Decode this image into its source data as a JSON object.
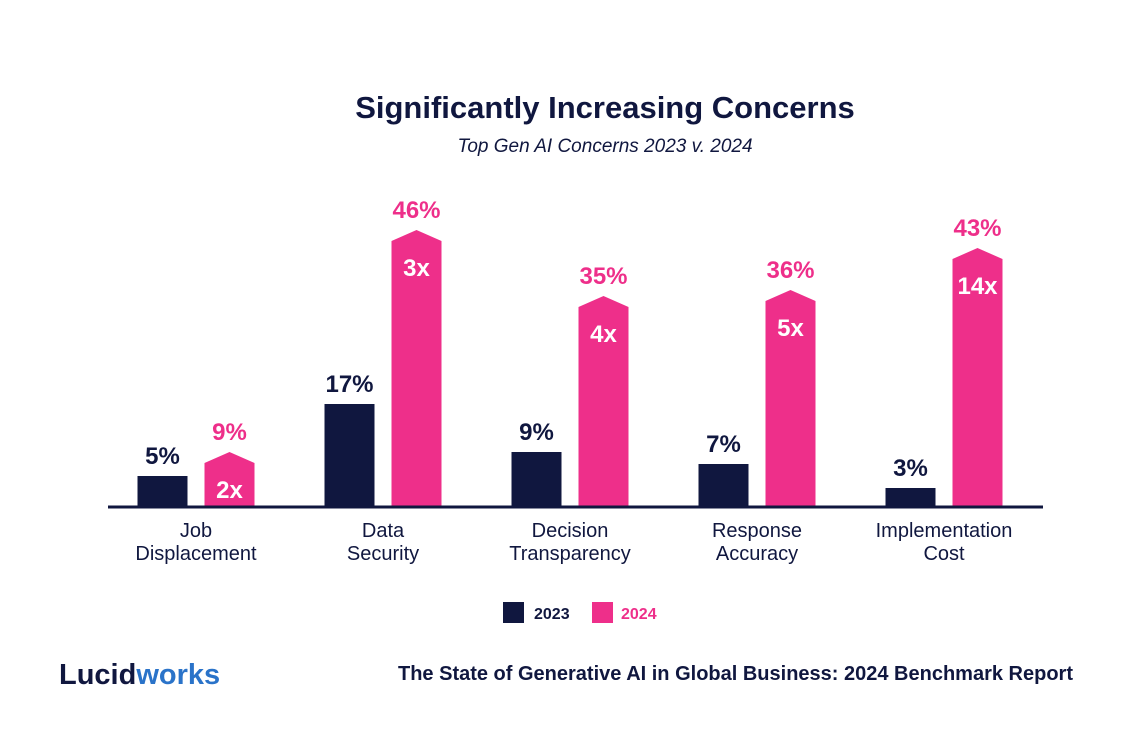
{
  "chart_data": {
    "type": "bar",
    "title": "Significantly Increasing Concerns",
    "subtitle": "Top Gen AI Concerns 2023 v. 2024",
    "categories": [
      [
        "Job",
        "Displacement"
      ],
      [
        "Data",
        "Security"
      ],
      [
        "Decision",
        "Transparency"
      ],
      [
        "Response",
        "Accuracy"
      ],
      [
        "Implementation",
        "Cost"
      ]
    ],
    "series": [
      {
        "name": "2023",
        "color": "#10173f",
        "values": [
          5,
          17,
          9,
          7,
          3
        ],
        "labels": [
          "5%",
          "17%",
          "9%",
          "7%",
          "3%"
        ]
      },
      {
        "name": "2024",
        "color": "#ee2f8a",
        "values": [
          9,
          46,
          35,
          36,
          43
        ],
        "labels": [
          "9%",
          "46%",
          "35%",
          "36%",
          "43%"
        ]
      }
    ],
    "multipliers": [
      "2x",
      "3x",
      "4x",
      "5x",
      "14x"
    ],
    "ylim": [
      0,
      50
    ],
    "legend_position": "bottom-center",
    "grid": false
  },
  "footer": {
    "logo_part1": "Lucid",
    "logo_part2": "works",
    "report_title": "The State of Generative AI in Global Business: 2024 Benchmark Report"
  }
}
